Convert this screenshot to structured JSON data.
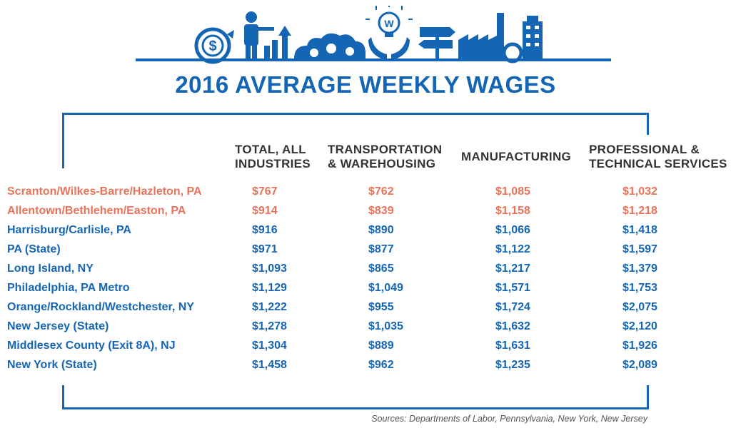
{
  "colors": {
    "brand": "#1565b5",
    "highlight": "#e8735a",
    "header_text": "#333333"
  },
  "icons": [
    "dollar-cycle-icon",
    "presenter-chart-icon",
    "gears-cloud-icon",
    "lightbulb-hands-icon",
    "signpost-icon",
    "factory-icon",
    "building-icon"
  ],
  "title": "2016 AVERAGE WEEKLY WAGES",
  "source": "Sources: Departments of Labor, Pennsylvania, New York, New Jersey",
  "chart_data": {
    "type": "table",
    "columns": [
      "TOTAL, ALL\nINDUSTRIES",
      "TRANSPORTATION\n& WAREHOUSING",
      "MANUFACTURING",
      "PROFESSIONAL &\nTECHNICAL SERVICES"
    ],
    "rows": [
      {
        "label": "Scranton/Wilkes-Barre/Hazleton, PA",
        "highlight": true,
        "values": [
          "$767",
          "$762",
          "$1,085",
          "$1,032"
        ]
      },
      {
        "label": "Allentown/Bethlehem/Easton, PA",
        "highlight": true,
        "values": [
          "$914",
          "$839",
          "$1,158",
          "$1,218"
        ]
      },
      {
        "label": "Harrisburg/Carlisle, PA",
        "highlight": false,
        "values": [
          "$916",
          "$890",
          "$1,066",
          "$1,418"
        ]
      },
      {
        "label": "PA (State)",
        "highlight": false,
        "values": [
          "$971",
          "$877",
          "$1,122",
          "$1,597"
        ]
      },
      {
        "label": "Long Island, NY",
        "highlight": false,
        "values": [
          "$1,093",
          "$865",
          "$1,217",
          "$1,379"
        ]
      },
      {
        "label": "Philadelphia, PA Metro",
        "highlight": false,
        "values": [
          "$1,129",
          "$1,049",
          "$1,571",
          "$1,753"
        ]
      },
      {
        "label": "Orange/Rockland/Westchester, NY",
        "highlight": false,
        "values": [
          "$1,222",
          "$955",
          "$1,724",
          "$2,075"
        ]
      },
      {
        "label": "New Jersey (State)",
        "highlight": false,
        "values": [
          "$1,278",
          "$1,035",
          "$1,632",
          "$2,120"
        ]
      },
      {
        "label": "Middlesex County (Exit 8A), NJ",
        "highlight": false,
        "values": [
          "$1,304",
          "$889",
          "$1,631",
          "$1,926"
        ]
      },
      {
        "label": "New York (State)",
        "highlight": false,
        "values": [
          "$1,458",
          "$962",
          "$1,235",
          "$2,089"
        ]
      }
    ]
  }
}
